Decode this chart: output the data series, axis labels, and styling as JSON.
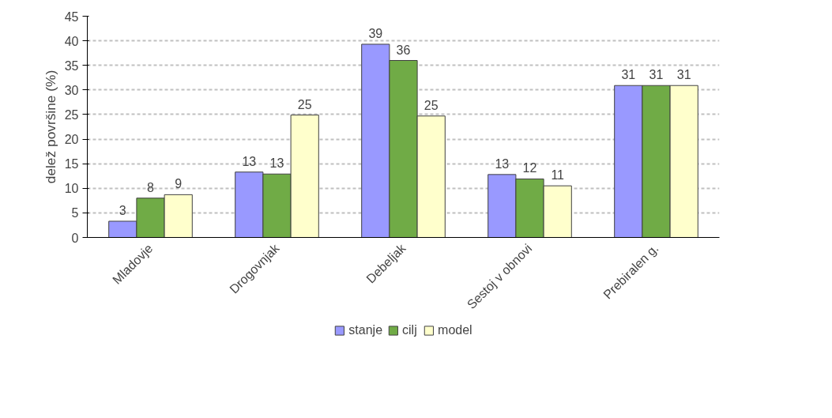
{
  "chart_data": {
    "type": "bar",
    "ylabel": "delež površine (%)",
    "categories": [
      "Mladovje",
      "Drogovnjak",
      "Debeljak",
      "Sestoj v obnovi",
      "Prebiralen g."
    ],
    "series": [
      {
        "name": "stanje",
        "color": "#9999ff",
        "values": [
          3.3,
          13.3,
          39.3,
          12.8,
          30.9
        ],
        "value_labels": [
          "3",
          "13",
          "39",
          "13",
          "31"
        ]
      },
      {
        "name": "cilj",
        "color": "#70ab46",
        "values": [
          8.0,
          12.9,
          36.0,
          11.9,
          30.9
        ],
        "value_labels": [
          "8",
          "13",
          "36",
          "12",
          "31"
        ]
      },
      {
        "name": "model",
        "color": "#ffffcc",
        "values": [
          8.7,
          24.9,
          24.7,
          10.5,
          30.9
        ],
        "value_labels": [
          "9",
          "25",
          "25",
          "11",
          "31"
        ]
      }
    ],
    "ylim": [
      0,
      45
    ],
    "yticks": [
      0,
      5,
      10,
      15,
      20,
      25,
      30,
      35,
      40,
      45
    ],
    "grid": "y",
    "legend": "bottom"
  }
}
